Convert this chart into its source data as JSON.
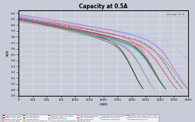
{
  "title": "Capacity at 0.5A",
  "xlabel": "mAh",
  "ylabel": "Volt",
  "xlim": [
    0,
    3000
  ],
  "ylim": [
    2.8,
    4.25
  ],
  "yticks": [
    2.8,
    2.9,
    3.0,
    3.1,
    3.2,
    3.3,
    3.4,
    3.5,
    3.6,
    3.7,
    3.8,
    3.9,
    4.0,
    4.1,
    4.2
  ],
  "xticks": [
    0,
    250,
    500,
    750,
    1000,
    1250,
    1500,
    1750,
    2000,
    2250,
    2500,
    2750,
    3000
  ],
  "background_color": "#c8ccd8",
  "plot_bg_color": "#c8ccd8",
  "annotation": "www.lygte-info.dk",
  "curve_params": [
    [
      "Redilast 2200 (Black)",
      2200,
      4.1,
      3.7,
      "#111111",
      "-",
      0.55
    ],
    [
      "Redilast 2600 (Red)",
      2600,
      4.12,
      3.68,
      "#cc0000",
      "-",
      0.55
    ],
    [
      "Redilast 2900 (Black)",
      2900,
      4.13,
      3.68,
      "#222222",
      "--",
      0.55
    ],
    [
      "AW IMR2600 (Red)",
      2600,
      4.15,
      3.75,
      "#ff4444",
      "-",
      0.55
    ],
    [
      "AW 2200 (Black)",
      2200,
      4.08,
      3.66,
      "#444444",
      "-",
      0.55
    ],
    [
      "AW 2600 (Black)",
      2600,
      4.11,
      3.68,
      "#333333",
      "--",
      0.55
    ],
    [
      "AW 2900 (Black)",
      2900,
      4.12,
      3.7,
      "#555555",
      "-.",
      0.55
    ],
    [
      "AuCell 2600 (Yellow/Black)",
      2600,
      4.09,
      3.65,
      "#bb9900",
      "-",
      0.55
    ],
    [
      "TrustFire TT2400 (Black/red)",
      2400,
      4.1,
      3.63,
      "#993333",
      "-",
      0.55
    ],
    [
      "Fake Sony 3000",
      3000,
      4.05,
      3.58,
      "#ffaacc",
      "-",
      0.55
    ],
    [
      "Soshne 2600 (Black)",
      2600,
      4.09,
      3.65,
      "#777777",
      "-",
      0.55
    ],
    [
      "Ultrafire BRC2800 (Black/white)",
      2800,
      4.07,
      3.6,
      "#aaaaaa",
      "-",
      0.55
    ],
    [
      "Cytac 2400 (Blue/white)",
      2400,
      4.11,
      3.67,
      "#44aaff",
      "-",
      0.55
    ],
    [
      "Cytac 2600 (Blue)",
      2600,
      4.1,
      3.65,
      "#0077dd",
      "-",
      0.55
    ],
    [
      "Cytac 2800 (Red)",
      2800,
      4.09,
      3.64,
      "#ff2277",
      "-",
      0.55
    ],
    [
      "Tenergy 2600",
      2600,
      4.08,
      3.62,
      "#00bb55",
      "-",
      0.55
    ],
    [
      "SolarForce 3400 (White/blue)",
      3400,
      4.14,
      3.72,
      "#88ccff",
      "-",
      0.55
    ],
    [
      "SpiderFire 3000 (Gray)",
      3000,
      4.06,
      3.6,
      "#999988",
      "-",
      0.55
    ],
    [
      "Panasonic 2900 (Gray)",
      2900,
      4.12,
      3.69,
      "#bbbbbb",
      "--",
      0.55
    ],
    [
      "Samsung 3000 (Purple) at 4.7 volt",
      3000,
      4.18,
      3.75,
      "#9955cc",
      "-",
      0.55
    ],
    [
      "Samsung 3000 (Purple) at 4.35 mdc",
      3000,
      4.16,
      3.72,
      "#cc99ff",
      "--",
      0.55
    ],
    [
      "TrustFire TR2400 (Gray)",
      2400,
      4.08,
      3.62,
      "#ccccaa",
      "-",
      0.55
    ]
  ]
}
